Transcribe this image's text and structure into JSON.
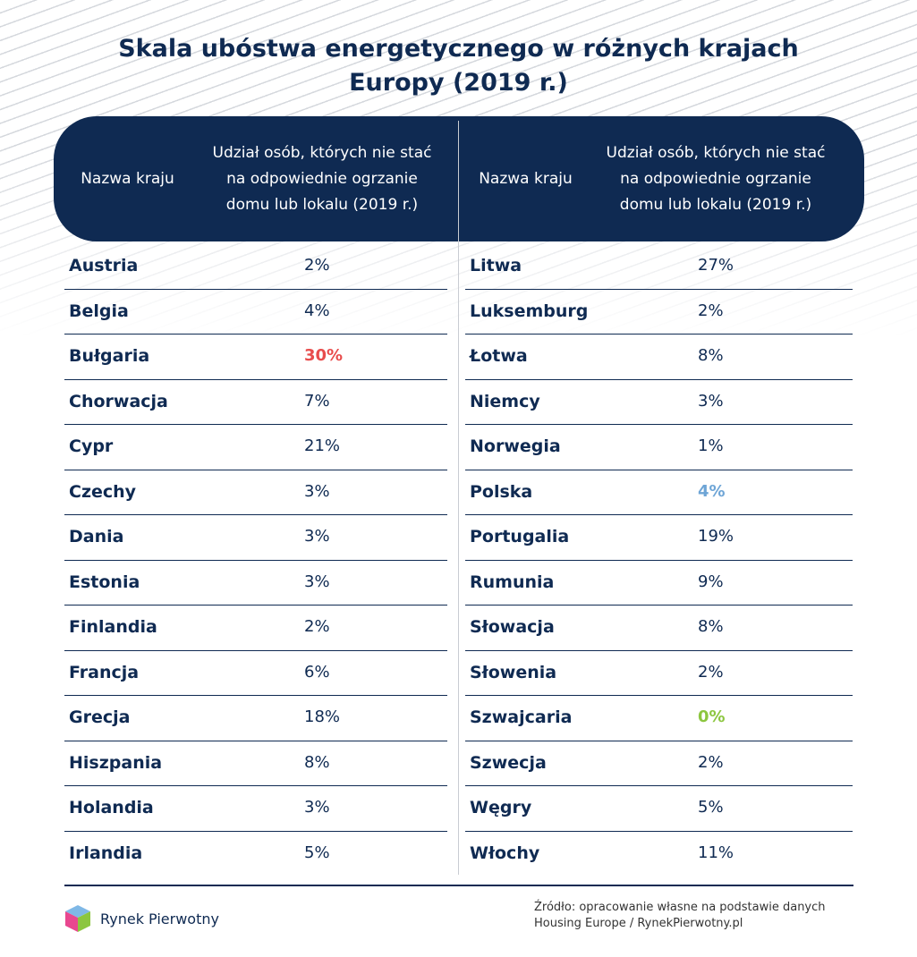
{
  "title_line1": "Skala ubóstwa energetycznego w różnych krajach",
  "title_line2": "Europy (2019 r.)",
  "colors": {
    "navy": "#0f2a52",
    "highlight_max": "#e84c4c",
    "highlight_poland": "#6ea5d6",
    "highlight_min": "#8cc63f"
  },
  "header": {
    "country": "Nazwa kraju",
    "share": "Udział osób, których nie stać na odpowiednie ogrzanie domu lub lokalu (2019 r.)"
  },
  "chart_data": {
    "type": "table",
    "columns": [
      "Nazwa kraju",
      "Udział osób, których nie stać na odpowiednie ogrzanie domu lub lokalu (2019 r.)"
    ],
    "left": [
      {
        "country": "Austria",
        "value": "2%"
      },
      {
        "country": "Belgia",
        "value": "4%"
      },
      {
        "country": "Bułgaria",
        "value": "30%",
        "highlight": "max"
      },
      {
        "country": "Chorwacja",
        "value": "7%"
      },
      {
        "country": "Cypr",
        "value": "21%"
      },
      {
        "country": "Czechy",
        "value": "3%"
      },
      {
        "country": "Dania",
        "value": "3%"
      },
      {
        "country": "Estonia",
        "value": "3%"
      },
      {
        "country": "Finlandia",
        "value": "2%"
      },
      {
        "country": "Francja",
        "value": "6%"
      },
      {
        "country": "Grecja",
        "value": "18%"
      },
      {
        "country": "Hiszpania",
        "value": "8%"
      },
      {
        "country": "Holandia",
        "value": "3%"
      },
      {
        "country": "Irlandia",
        "value": "5%"
      }
    ],
    "right": [
      {
        "country": "Litwa",
        "value": "27%"
      },
      {
        "country": "Luksemburg",
        "value": "2%"
      },
      {
        "country": "Łotwa",
        "value": "8%"
      },
      {
        "country": "Niemcy",
        "value": "3%"
      },
      {
        "country": "Norwegia",
        "value": "1%"
      },
      {
        "country": "Polska",
        "value": "4%",
        "highlight": "poland"
      },
      {
        "country": "Portugalia",
        "value": "19%"
      },
      {
        "country": "Rumunia",
        "value": "9%"
      },
      {
        "country": "Słowacja",
        "value": "8%"
      },
      {
        "country": "Słowenia",
        "value": "2%"
      },
      {
        "country": "Szwajcaria",
        "value": "0%",
        "highlight": "min"
      },
      {
        "country": "Szwecja",
        "value": "2%"
      },
      {
        "country": "Węgry",
        "value": "5%"
      },
      {
        "country": "Włochy",
        "value": "11%"
      }
    ]
  },
  "footer": {
    "logo_text": "Rynek Pierwotny",
    "source_line1": "Źródło: opracowanie własne na podstawie danych",
    "source_line2": "Housing Europe / RynekPierwotny.pl"
  }
}
